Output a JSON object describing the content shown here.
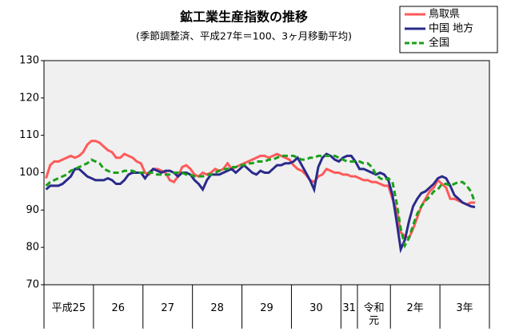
{
  "chart_data": {
    "type": "line",
    "title": "鉱工業生産指数の推移",
    "subtitle": "(季節調整済、平成27年＝100、3ヶ月移動平均)",
    "categories": [
      "平成25",
      null,
      null,
      null,
      null,
      null,
      null,
      null,
      null,
      null,
      null,
      null,
      "26",
      null,
      null,
      null,
      null,
      null,
      null,
      null,
      null,
      null,
      null,
      null,
      "27",
      null,
      null,
      null,
      null,
      null,
      null,
      null,
      null,
      null,
      null,
      null,
      "28",
      null,
      null,
      null,
      null,
      null,
      null,
      null,
      null,
      null,
      null,
      null,
      "29",
      null,
      null,
      null,
      null,
      null,
      null,
      null,
      null,
      null,
      null,
      null,
      "30",
      null,
      null,
      null,
      null,
      null,
      null,
      null,
      null,
      null,
      null,
      null,
      "31",
      null,
      null,
      null,
      "令和元",
      null,
      null,
      null,
      null,
      null,
      null,
      null,
      "2年",
      null,
      null,
      null,
      null,
      null,
      null,
      null,
      null,
      null,
      null,
      null,
      "3年",
      null,
      null,
      null,
      null,
      null,
      null,
      null,
      null,
      null,
      null,
      null
    ],
    "series": [
      {
        "name": "鳥取県",
        "color": "#ff5a5a",
        "dash": false,
        "values": [
          98.5,
          102,
          103,
          103,
          103.5,
          104,
          104.5,
          104,
          104.5,
          105.5,
          107.5,
          108.5,
          108.5,
          108,
          107,
          106,
          105.5,
          104,
          104,
          105,
          104.5,
          104,
          103,
          102.5,
          100,
          99.5,
          101,
          101,
          100.5,
          100,
          98,
          97.5,
          99,
          101.5,
          102,
          101,
          99.5,
          99,
          100,
          99.5,
          100,
          101,
          100.5,
          101,
          102.5,
          101,
          101.5,
          102,
          102.5,
          103,
          103.5,
          104,
          104.5,
          104.5,
          104,
          104.5,
          105,
          104.5,
          104,
          103.5,
          102,
          101,
          100.5,
          99.5,
          98,
          97.5,
          99,
          99.5,
          101,
          100.5,
          100,
          100,
          99.5,
          99.5,
          99,
          99,
          98.5,
          98,
          98,
          97.5,
          97.5,
          97,
          96.5,
          96.5,
          93,
          90,
          84,
          83,
          82.5,
          85,
          88,
          91,
          93,
          95,
          96,
          98,
          97,
          96,
          93,
          93,
          92.5,
          92,
          91.5,
          92,
          92,
          null,
          null,
          null
        ]
      },
      {
        "name": "中国 地方",
        "color": "#2a2a8c",
        "dash": false,
        "values": [
          95.5,
          96.5,
          96.5,
          96.5,
          97,
          98,
          99,
          101,
          101,
          100,
          99,
          98.5,
          98,
          98,
          98,
          98.5,
          98,
          97,
          97,
          98,
          99.5,
          100,
          100,
          100,
          98.5,
          100,
          101,
          100.5,
          100,
          100.5,
          100.5,
          100,
          99,
          100,
          100,
          99.5,
          98,
          97,
          95.5,
          98,
          99.5,
          99.5,
          99.5,
          100,
          100.5,
          101,
          100,
          101,
          102,
          101,
          100,
          99.5,
          100.5,
          100,
          100,
          101,
          102,
          102,
          102.5,
          102.5,
          103,
          104,
          102,
          100,
          98,
          95.5,
          101.5,
          104,
          105,
          104.5,
          103.5,
          103,
          104,
          104.5,
          104.5,
          103,
          101,
          101,
          100.5,
          100,
          99.5,
          100,
          99.5,
          98,
          94,
          87,
          79.5,
          82,
          87,
          91,
          93,
          94.5,
          95,
          96,
          97,
          98.5,
          99,
          98.5,
          96.5,
          94,
          93,
          92,
          91.5,
          91,
          90.8,
          null,
          null,
          null
        ]
      },
      {
        "name": "全国",
        "color": "#1aa01a",
        "dash": true,
        "values": [
          96.5,
          97.5,
          98,
          98.5,
          99,
          99.5,
          100.5,
          101,
          101.5,
          102,
          102.5,
          103.5,
          103,
          102.5,
          101,
          100.5,
          100,
          100,
          100,
          100.5,
          100.5,
          100.5,
          100,
          100,
          100,
          100,
          100,
          99.5,
          99.5,
          99.5,
          99.5,
          100,
          100,
          100,
          99.5,
          99.5,
          99,
          99,
          99,
          99.5,
          99.5,
          100,
          100.5,
          101,
          101,
          101.5,
          101.5,
          102,
          102,
          102.5,
          102.5,
          103,
          103,
          103,
          103.5,
          103.5,
          104,
          104.5,
          104.5,
          104.5,
          104.5,
          104,
          103.5,
          103.5,
          104,
          104,
          104.5,
          104.5,
          104.5,
          104.5,
          104.5,
          104,
          103.5,
          103,
          103,
          103,
          103,
          102.5,
          102.5,
          101.5,
          99.5,
          98.5,
          98,
          98.5,
          97.5,
          92,
          85,
          80.5,
          82.5,
          86,
          89,
          91,
          92.5,
          93.5,
          95,
          95.5,
          97,
          97,
          96.5,
          97,
          97.5,
          97.5,
          96.5,
          95,
          92,
          null,
          null,
          null
        ]
      }
    ],
    "ylim": [
      70,
      130
    ],
    "yticks": [
      70,
      80,
      90,
      100,
      110,
      120,
      130
    ],
    "grid": false
  }
}
